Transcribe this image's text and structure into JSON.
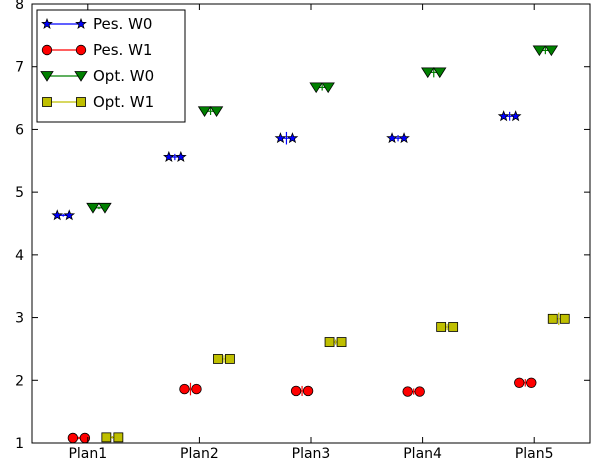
{
  "chart_data": {
    "type": "scatter",
    "title": "",
    "xlabel": "",
    "ylabel": "",
    "categories": [
      "Plan1",
      "Plan2",
      "Plan3",
      "Plan4",
      "Plan5"
    ],
    "ylim": [
      1,
      8
    ],
    "yticks": [
      1,
      2,
      3,
      4,
      5,
      6,
      7,
      8
    ],
    "grid": false,
    "legend": "top-left",
    "series": [
      {
        "name": "Pes. W0",
        "color": "#0000ff",
        "marker": "star",
        "values": [
          4.63,
          5.56,
          5.86,
          5.86,
          6.21
        ],
        "errors": [
          0.02,
          0.05,
          0.1,
          0.05,
          0.07
        ]
      },
      {
        "name": "Pes. W1",
        "color": "#ff0000",
        "marker": "circle",
        "values": [
          1.08,
          1.86,
          1.83,
          1.82,
          1.96
        ],
        "errors": [
          0.02,
          0.1,
          0.08,
          0.05,
          0.06
        ]
      },
      {
        "name": "Opt. W0",
        "color": "#008000",
        "marker": "triangle-down",
        "values": [
          4.75,
          6.29,
          6.67,
          6.91,
          7.26
        ],
        "errors": [
          0.02,
          0.06,
          0.05,
          0.08,
          0.06
        ]
      },
      {
        "name": "Opt. W1",
        "color": "#bfbf00",
        "marker": "square",
        "values": [
          1.09,
          2.34,
          2.61,
          2.85,
          2.98
        ],
        "errors": [
          0.02,
          0.06,
          0.04,
          0.05,
          0.1
        ]
      }
    ]
  }
}
